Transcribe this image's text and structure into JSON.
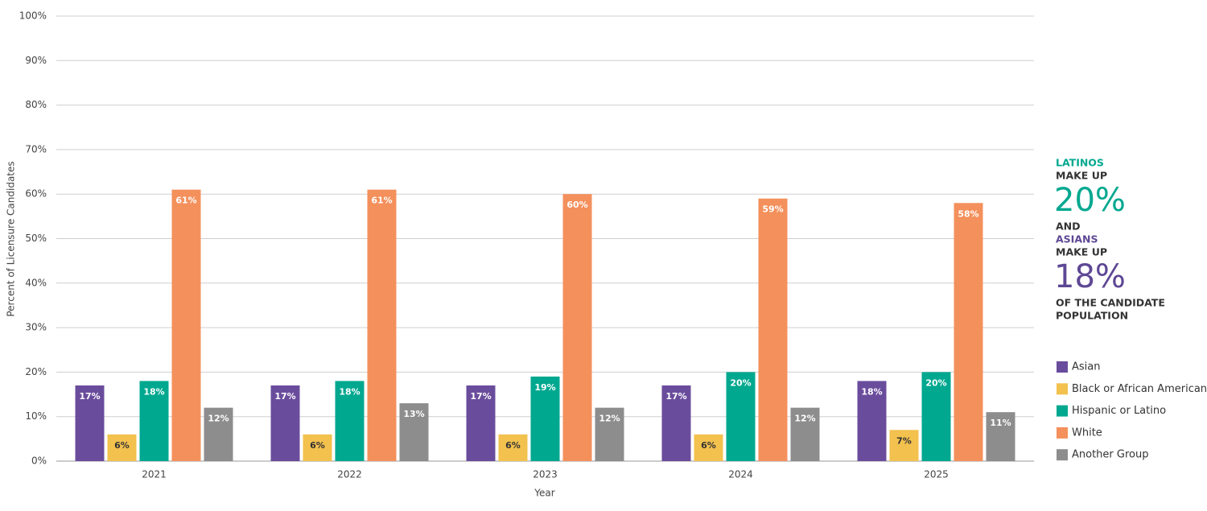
{
  "chart_data": {
    "type": "bar",
    "y_label": "Percent of Licensure Candidates",
    "x_label": "Year",
    "categories": [
      "2021",
      "2022",
      "2023",
      "2024",
      "2025"
    ],
    "series": [
      {
        "name": "Asian",
        "color": "#6a4c9c",
        "values": [
          17,
          17,
          17,
          17,
          18
        ],
        "value_labels": [
          "17%",
          "17%",
          "17%",
          "17%",
          "18%"
        ]
      },
      {
        "name": "Black or African American",
        "color": "#f2c14e",
        "values": [
          6,
          6,
          6,
          6,
          7
        ],
        "value_labels": [
          "6%",
          "6%",
          "6%",
          "6%",
          "7%"
        ]
      },
      {
        "name": "Hispanic or Latino",
        "color": "#00a88f",
        "values": [
          18,
          18,
          19,
          20,
          20
        ],
        "value_labels": [
          "18%",
          "18%",
          "19%",
          "20%",
          "20%"
        ]
      },
      {
        "name": "White",
        "color": "#f4905c",
        "values": [
          61,
          61,
          60,
          59,
          58
        ],
        "value_labels": [
          "61%",
          "61%",
          "60%",
          "59%",
          "58%"
        ]
      },
      {
        "name": "Another Group",
        "color": "#8d8d8d",
        "values": [
          12,
          13,
          12,
          12,
          11
        ],
        "value_labels": [
          "12%",
          "13%",
          "12%",
          "12%",
          "11%"
        ]
      }
    ],
    "ylim": [
      0,
      100
    ],
    "yticks": [
      {
        "value": 0,
        "label": "0%"
      },
      {
        "value": 10,
        "label": "10%"
      },
      {
        "value": 20,
        "label": "20%"
      },
      {
        "value": 30,
        "label": "30%"
      },
      {
        "value": 40,
        "label": "40%"
      },
      {
        "value": 50,
        "label": "50%"
      },
      {
        "value": 60,
        "label": "60%"
      },
      {
        "value": 70,
        "label": "70%"
      },
      {
        "value": 80,
        "label": "80%"
      },
      {
        "value": 90,
        "label": "90%"
      },
      {
        "value": 100,
        "label": "100%"
      }
    ],
    "grid": true,
    "annotation": [
      "LATINOS",
      "MAKE UP",
      "20%",
      "AND",
      "ASIANS",
      "MAKE UP",
      "18%",
      "OF THE CANDIDATE",
      "POPULATION"
    ]
  }
}
